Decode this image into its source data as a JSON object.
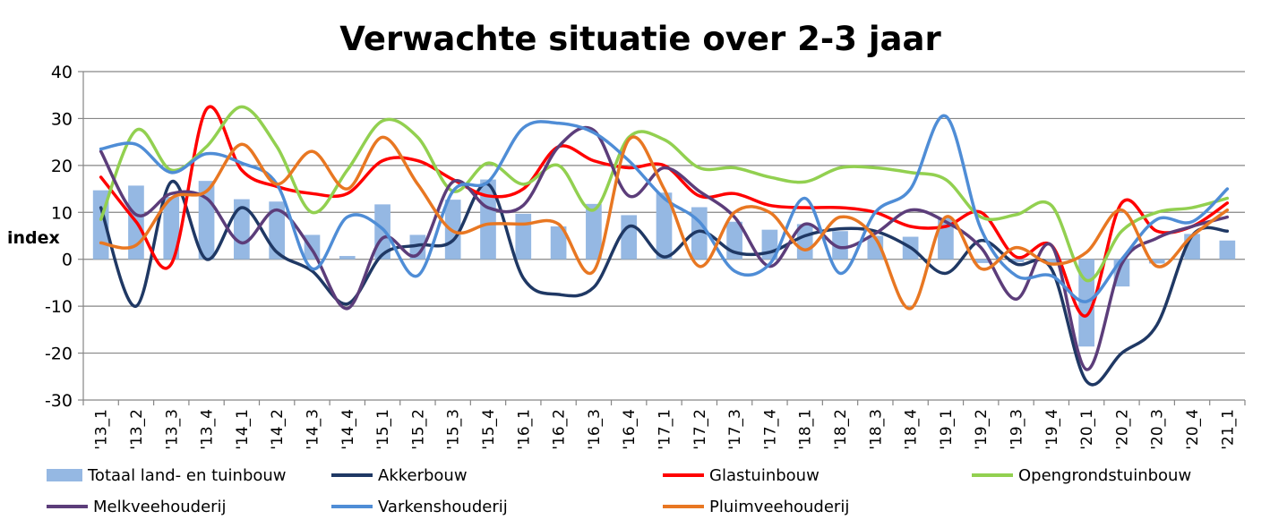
{
  "chart_data": {
    "type": "bar+line",
    "title": "Verwachte situatie over 2-3 jaar",
    "ylabel": "index",
    "xlabel": "",
    "ylim": [
      -30,
      40
    ],
    "yticks": [
      40,
      30,
      20,
      10,
      0,
      -10,
      -20,
      -30
    ],
    "grid": true,
    "legend_position": "bottom",
    "categories": [
      "'13_1",
      "'13_2",
      "'13_3",
      "'13_4",
      "'14_1",
      "'14_2",
      "'14_3",
      "'14_4",
      "'15_1",
      "'15_2",
      "'15_3",
      "'15_4",
      "'16_1",
      "'16_2",
      "'16_3",
      "'16_4",
      "'17_1",
      "'17_2",
      "'17_3",
      "'17_4",
      "'18_1",
      "'18_2",
      "'18_3",
      "'18_4",
      "'19_1",
      "'19_2",
      "'19_3",
      "'19_4",
      "'20_1",
      "'20_2",
      "'20_3",
      "'20_4",
      "'21_1"
    ],
    "bar_series": {
      "name": "Totaal land- en tuinbouw",
      "color": "#95B8E3",
      "values": [
        14.7,
        15.7,
        13.3,
        16.7,
        12.8,
        12.3,
        5.2,
        0.7,
        11.7,
        5.2,
        12.7,
        17.0,
        9.7,
        7.0,
        11.8,
        9.4,
        14.2,
        11.1,
        8.0,
        6.3,
        7.5,
        6.0,
        5.0,
        4.8,
        8.8,
        -0.8,
        -0.6,
        -0.9,
        -18.6,
        -5.8,
        -0.9,
        5.4,
        4.0
      ]
    },
    "line_series": [
      {
        "name": "Akkerbouw",
        "color": "#1F3864",
        "values": [
          11.0,
          -10.0,
          16.5,
          0.0,
          11.0,
          1.5,
          -2.5,
          -9.5,
          1.0,
          3.0,
          4.0,
          16.0,
          -4.0,
          -7.5,
          -6.0,
          7.0,
          0.5,
          6.0,
          1.5,
          1.5,
          5.0,
          6.5,
          6.0,
          2.5,
          -3.0,
          4.0,
          -1.0,
          -2.0,
          -26.0,
          -20.0,
          -14.0,
          5.0,
          6.0
        ]
      },
      {
        "name": "Glastuinbouw",
        "color": "#FF0000",
        "values": [
          17.5,
          8.0,
          -1.0,
          32.0,
          19.0,
          15.5,
          14.0,
          14.0,
          21.0,
          21.0,
          17.0,
          13.5,
          15.0,
          24.0,
          21.0,
          19.5,
          20.0,
          13.5,
          14.0,
          11.5,
          11.0,
          11.0,
          10.0,
          7.0,
          7.0,
          10.0,
          0.5,
          3.0,
          -12.0,
          12.0,
          6.0,
          7.0,
          12.0
        ]
      },
      {
        "name": "Opengrondstuinbouw",
        "color": "#92D050",
        "values": [
          8.5,
          27.5,
          19.0,
          24.0,
          32.5,
          24.0,
          10.0,
          19.0,
          29.5,
          26.0,
          14.5,
          20.5,
          16.0,
          20.0,
          10.5,
          26.0,
          25.5,
          19.5,
          19.5,
          17.5,
          16.5,
          19.5,
          19.5,
          18.5,
          17.0,
          9.0,
          9.5,
          11.5,
          -4.5,
          6.0,
          10.0,
          11.0,
          13.0
        ]
      },
      {
        "name": "Melkveehouderij",
        "color": "#5C3D7A",
        "values": [
          23.0,
          9.5,
          14.0,
          13.0,
          3.5,
          10.5,
          2.0,
          -10.5,
          4.5,
          1.0,
          16.5,
          11.0,
          11.5,
          24.0,
          27.5,
          13.5,
          19.5,
          14.5,
          9.0,
          -1.5,
          7.5,
          2.5,
          5.5,
          10.5,
          8.0,
          2.5,
          -8.5,
          3.0,
          -23.5,
          -1.0,
          4.5,
          7.0,
          9.0
        ]
      },
      {
        "name": "Varkenshouderij",
        "color": "#4F8DD6",
        "values": [
          23.5,
          24.5,
          18.5,
          22.5,
          20.5,
          16.0,
          -2.0,
          9.0,
          6.5,
          -3.5,
          14.5,
          16.5,
          28.0,
          29.0,
          27.0,
          21.0,
          13.0,
          8.0,
          -2.5,
          -1.0,
          13.0,
          -3.0,
          10.0,
          15.0,
          30.5,
          6.5,
          -3.5,
          -3.5,
          -9.0,
          0.0,
          8.5,
          8.0,
          15.0
        ]
      },
      {
        "name": "Pluimveehouderij",
        "color": "#E87722",
        "values": [
          3.5,
          3.0,
          13.0,
          14.5,
          24.5,
          16.0,
          23.0,
          15.0,
          26.0,
          16.0,
          6.0,
          7.5,
          7.5,
          7.5,
          -2.5,
          25.5,
          15.0,
          -1.5,
          10.0,
          10.0,
          2.0,
          9.0,
          4.5,
          -10.5,
          9.0,
          -2.0,
          2.5,
          -1.0,
          1.5,
          10.5,
          -1.5,
          5.0,
          10.5
        ]
      }
    ]
  }
}
